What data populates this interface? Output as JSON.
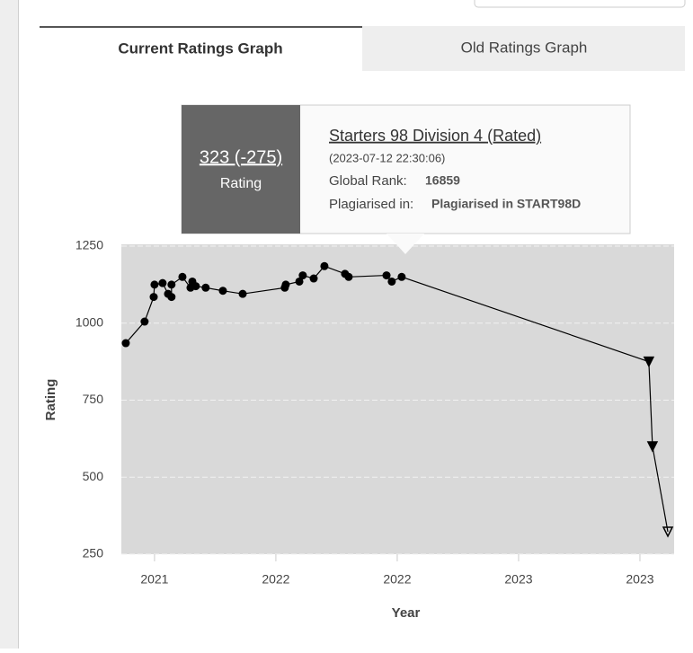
{
  "tabs": [
    "Current Ratings Graph",
    "Old Ratings Graph"
  ],
  "tooltip": {
    "rating": "323 (-275)",
    "rating_label": "Rating",
    "contest": "Starters 98 Division 4 (Rated)",
    "time": "(2023-07-12 22:30:06)",
    "rank_label": "Global Rank:",
    "rank": "16859",
    "plagiarism_label": "Plagiarised in:",
    "plagiarism": "Plagiarised in START98D"
  },
  "chart_data": {
    "type": "line",
    "x_label": "Year",
    "y_label": "Rating",
    "xlim": [
      2020.836,
      2023.569
    ],
    "xticks": [
      {
        "value": 2021.0,
        "label": "2021"
      },
      {
        "value": 2021.6,
        "label": "2022"
      },
      {
        "value": 2022.2,
        "label": "2022"
      },
      {
        "value": 2022.8,
        "label": "2023"
      },
      {
        "value": 2023.4,
        "label": "2023"
      }
    ],
    "ylim": [
      250,
      1250
    ],
    "yticks": [
      250,
      500,
      750,
      1000,
      1250
    ],
    "grid": true,
    "series": [
      {
        "color": "#000000",
        "x": [
          2020.858,
          2020.951,
          2020.996,
          2021.0,
          2021.04,
          2021.067,
          2021.084,
          2021.084,
          2021.138,
          2021.178,
          2021.187,
          2021.204,
          2021.253,
          2021.338,
          2021.436,
          2021.644,
          2021.649,
          2021.716,
          2021.733,
          2021.787,
          2021.84,
          2021.942,
          2021.96,
          2022.147,
          2022.173,
          2022.222,
          2023.444,
          2023.462,
          2023.538
        ],
        "values": [
          935,
          1005,
          1085,
          1125,
          1130,
          1095,
          1085,
          1125,
          1150,
          1115,
          1135,
          1120,
          1115,
          1105,
          1095,
          1115,
          1125,
          1135,
          1155,
          1145,
          1185,
          1160,
          1150,
          1155,
          1135,
          1150,
          875,
          600,
          323
        ],
        "markers": [
          "circle",
          "circle",
          "circle",
          "circle",
          "circle",
          "circle",
          "circle",
          "circle",
          "circle",
          "circle",
          "circle",
          "circle",
          "circle",
          "circle",
          "circle",
          "circle",
          "circle",
          "circle",
          "circle",
          "circle",
          "circle",
          "circle",
          "circle",
          "circle",
          "circle",
          "circle",
          "triangle-down",
          "triangle-down",
          "triangle-down-open"
        ]
      }
    ]
  }
}
